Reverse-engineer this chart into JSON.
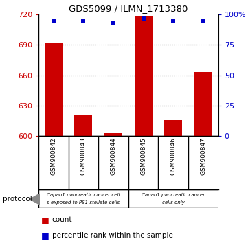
{
  "title": "GDS5099 / ILMN_1713380",
  "samples": [
    "GSM900842",
    "GSM900843",
    "GSM900844",
    "GSM900845",
    "GSM900846",
    "GSM900847"
  ],
  "counts": [
    692,
    621,
    603,
    718,
    616,
    663
  ],
  "percentile_ranks": [
    95,
    95,
    93,
    97,
    95,
    95
  ],
  "ylim_left": [
    600,
    720
  ],
  "yticks_left": [
    600,
    630,
    660,
    690,
    720
  ],
  "yticks_right": [
    0,
    25,
    50,
    75,
    100
  ],
  "ylim_right": [
    0,
    100
  ],
  "bar_color": "#cc0000",
  "dot_color": "#0000cc",
  "protocol_label": "protocol",
  "legend_count_label": "count",
  "legend_percentile_label": "percentile rank within the sample",
  "bar_width": 0.6,
  "left_ylabel_color": "#cc0000",
  "right_ylabel_color": "#0000cc",
  "background_xtick": "#c8c8c8",
  "group1_label_line1": "Capan1 pancreatic cancer cell",
  "group1_label_line2": "s exposed to PS1 stellate cells",
  "group2_label_line1": "Capan1 pancreatic cancer",
  "group2_label_line2": "cells only",
  "proto_bg": "#70e870",
  "grid_yticks": [
    630,
    660,
    690
  ]
}
